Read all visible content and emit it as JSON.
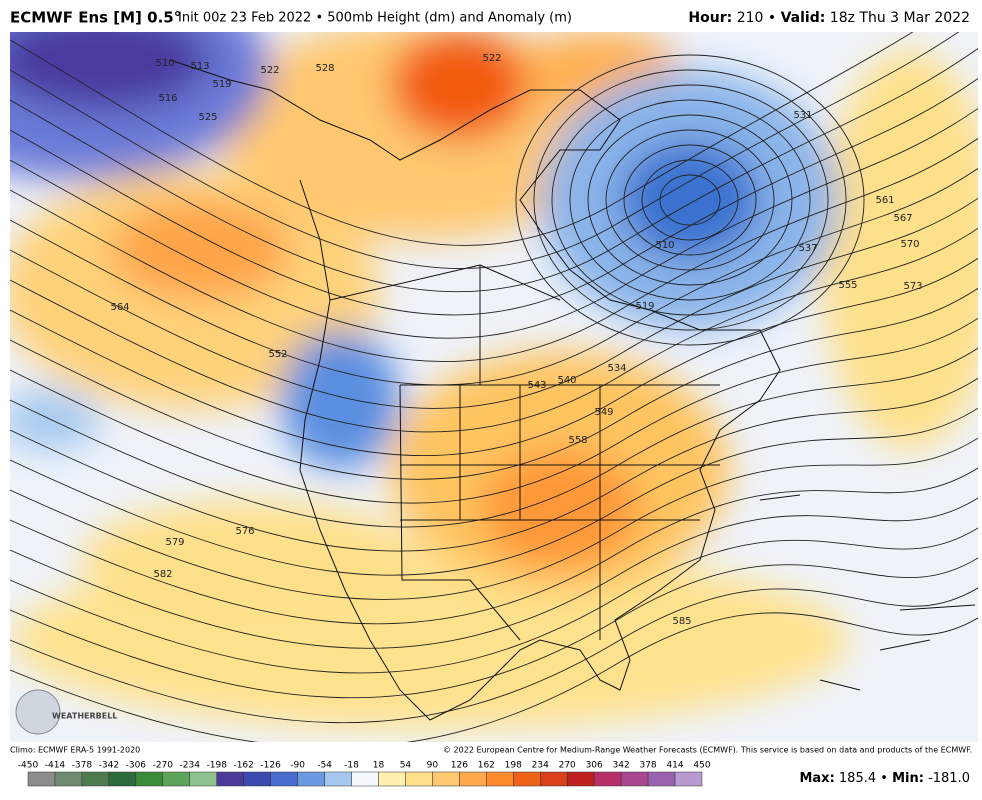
{
  "header": {
    "model": "ECMWF Ens [M] 0.5°",
    "description": "Init 00z 23 Feb 2022 • 500mb Height (dm) and Anomaly (m)",
    "hour_label": "Hour:",
    "hour": "210",
    "separator": "•",
    "valid_label": "Valid:",
    "valid": "18z Thu 3 Mar 2022"
  },
  "map": {
    "contour_labels": [
      510,
      513,
      519,
      522,
      516,
      525,
      528,
      522,
      531,
      537,
      561,
      567,
      570,
      573,
      555,
      564,
      552,
      519,
      510,
      534,
      540,
      543,
      549,
      558,
      576,
      579,
      582,
      585
    ],
    "logo": "WEATHERBELL"
  },
  "footer": {
    "climo": "Climo: ECMWF ERA-5 1991-2020",
    "copyright": "© 2022 European Centre for Medium-Range Weather Forecasts (ECMWF). This service is based on data and products of the ECMWF.",
    "max_label": "Max:",
    "max": "185.4",
    "separator": "•",
    "min_label": "Min:",
    "min": "-181.0"
  },
  "colorbar": {
    "ticks": [
      -450,
      -414,
      -378,
      -342,
      -306,
      -270,
      -234,
      -198,
      -162,
      -126,
      -90,
      -54,
      -18,
      18,
      54,
      90,
      126,
      162,
      198,
      234,
      270,
      306,
      342,
      378,
      414,
      450
    ],
    "colors": [
      "#8c8c8c",
      "#6e8a6e",
      "#4e7b4e",
      "#2e6b3a",
      "#3a8a3a",
      "#5aa55a",
      "#8cc08c",
      "#4b3a9a",
      "#3a4ab0",
      "#4a6ad0",
      "#6a9ae0",
      "#a4c8f0",
      "#f4f7fb",
      "#fff0b0",
      "#ffe08a",
      "#ffc870",
      "#ffa84c",
      "#ff8a2c",
      "#f06418",
      "#d8401a",
      "#c02020",
      "#b8306a",
      "#a84890",
      "#9a62b0",
      "#b89ad0"
    ]
  }
}
